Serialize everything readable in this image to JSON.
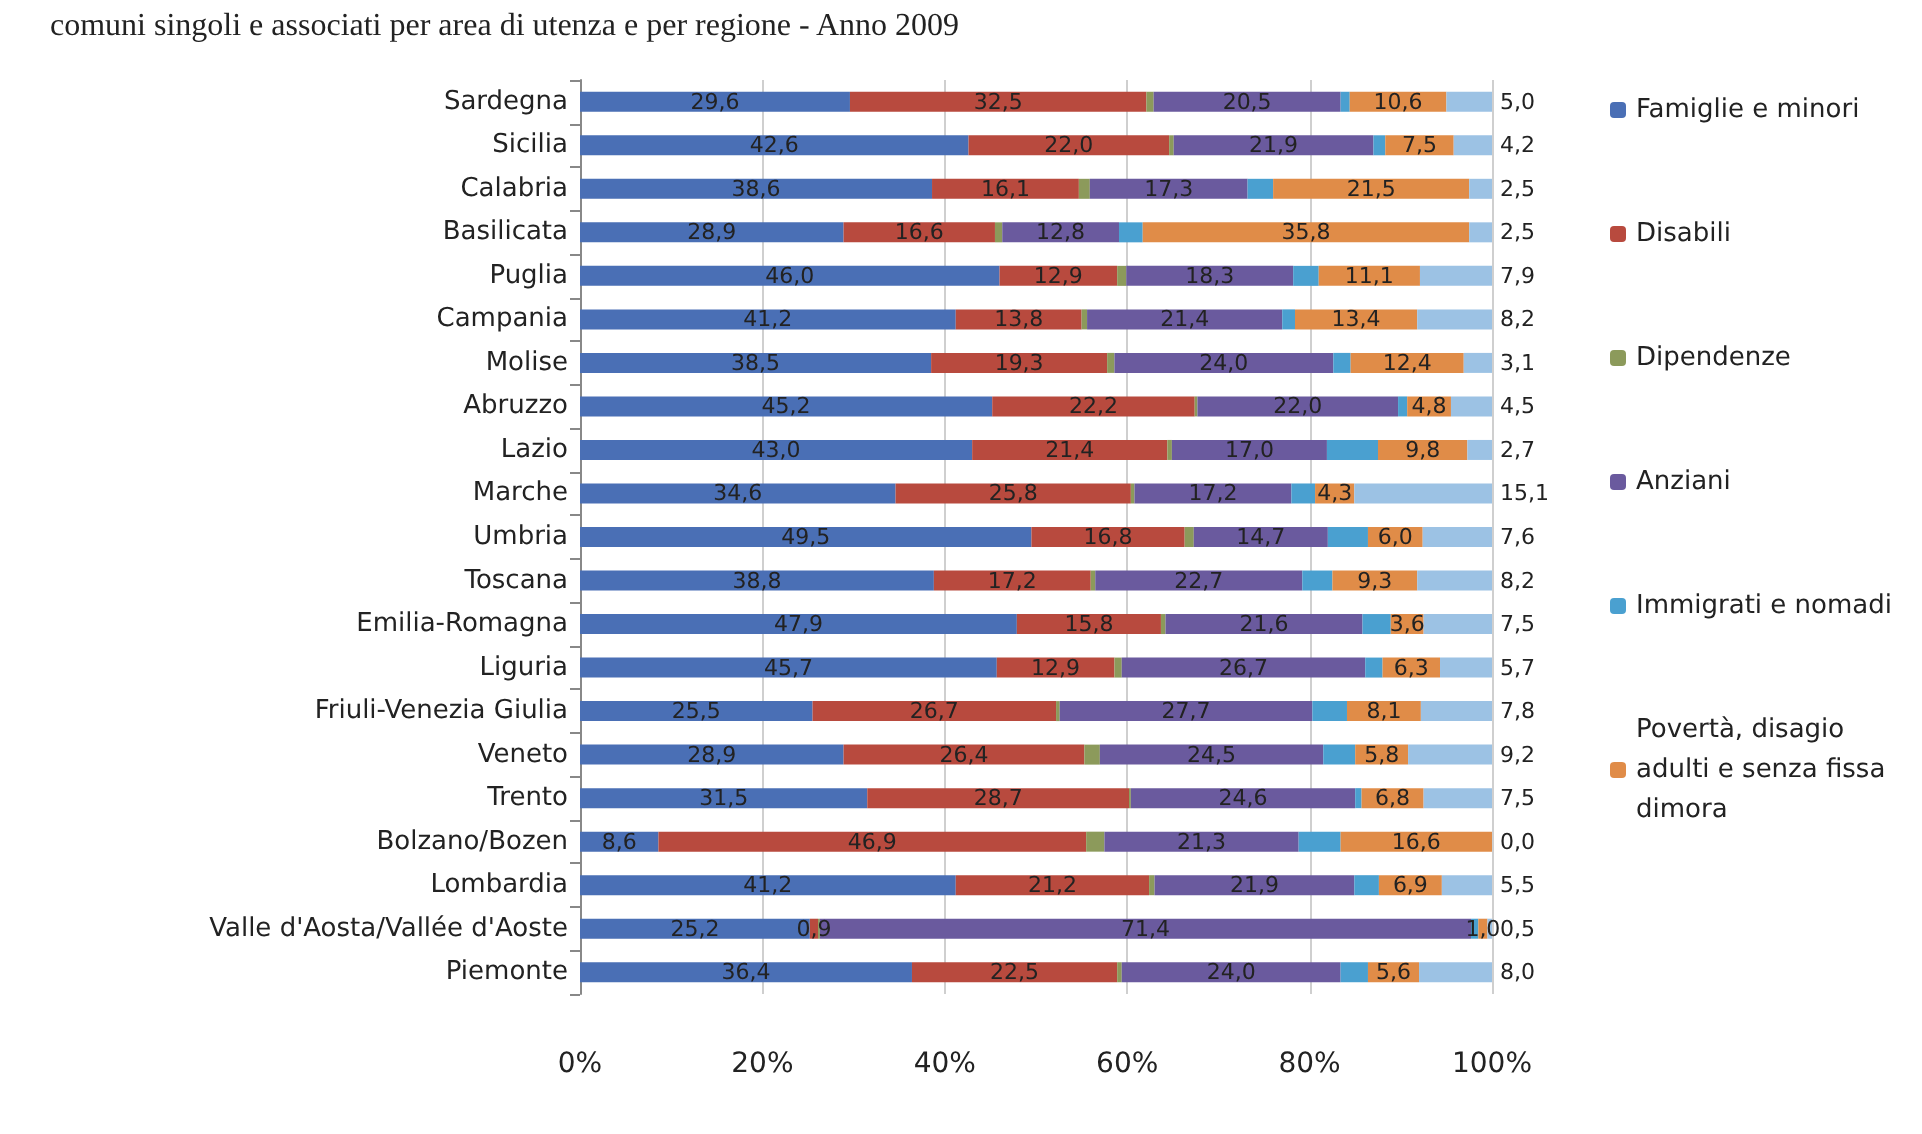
{
  "chart_data": {
    "type": "bar",
    "orientation": "horizontal",
    "stacked": true,
    "title": "comuni singoli e associati per area di utenza e per regione - Anno 2009",
    "categories": [
      "Sardegna",
      "Sicilia",
      "Calabria",
      "Basilicata",
      "Puglia",
      "Campania",
      "Molise",
      "Abruzzo",
      "Lazio",
      "Marche",
      "Umbria",
      "Toscana",
      "Emilia-Romagna",
      "Liguria",
      "Friuli-Venezia Giulia",
      "Veneto",
      "Trento",
      "Bolzano/Bozen",
      "Lombardia",
      "Valle d'Aosta/Vallée d'Aoste",
      "Piemonte"
    ],
    "xlim": [
      0,
      100
    ],
    "xticks": [
      {
        "value": 0,
        "label": "0%"
      },
      {
        "value": 20,
        "label": "20%"
      },
      {
        "value": 40,
        "label": "40%"
      },
      {
        "value": 60,
        "label": "60%"
      },
      {
        "value": 80,
        "label": "80%"
      },
      {
        "value": 100,
        "label": "100%"
      }
    ],
    "grid": "x",
    "legend": "right",
    "series": [
      {
        "name": "Famiglie e minori",
        "color": "#4a6fb5",
        "values": [
          29.6,
          42.6,
          38.6,
          28.9,
          46.0,
          41.2,
          38.5,
          45.2,
          43.0,
          34.6,
          49.5,
          38.8,
          47.9,
          45.7,
          25.5,
          28.9,
          31.5,
          8.6,
          41.2,
          25.2,
          36.4
        ],
        "value_labels": [
          "29,6",
          "42,6",
          "38,6",
          "28,9",
          "46,0",
          "41,2",
          "38,5",
          "45,2",
          "43,0",
          "34,6",
          "49,5",
          "38,8",
          "47,9",
          "45,7",
          "25,5",
          "28,9",
          "31,5",
          "8,6",
          "41,2",
          "25,2",
          "36,4"
        ]
      },
      {
        "name": "Disabili",
        "color": "#b84a3e",
        "values": [
          32.5,
          22.0,
          16.1,
          16.6,
          12.9,
          13.8,
          19.3,
          22.2,
          21.4,
          25.8,
          16.8,
          17.2,
          15.8,
          12.9,
          26.7,
          26.4,
          28.7,
          46.9,
          21.2,
          0.9,
          22.5
        ],
        "value_labels": [
          "32,5",
          "22,0",
          "16,1",
          "16,6",
          "12,9",
          "13,8",
          "19,3",
          "22,2",
          "21,4",
          "25,8",
          "16,8",
          "17,2",
          "15,8",
          "12,9",
          "26,7",
          "26,4",
          "28,7",
          "46,9",
          "21,2",
          "0,9",
          "22,5"
        ]
      },
      {
        "name": "Dipendenze",
        "color": "#8c9a5b",
        "values": [
          0.8,
          0.5,
          1.2,
          0.8,
          1.0,
          0.6,
          0.8,
          0.3,
          0.5,
          0.4,
          1.0,
          0.5,
          0.5,
          0.8,
          0.4,
          1.7,
          0.2,
          2.0,
          0.6,
          0.2,
          0.5
        ]
      },
      {
        "name": "Anziani",
        "color": "#6a5a9e",
        "values": [
          20.5,
          21.9,
          17.3,
          12.8,
          18.3,
          21.4,
          24.0,
          22.0,
          17.0,
          17.2,
          14.7,
          22.7,
          21.6,
          26.7,
          27.7,
          24.5,
          24.6,
          21.3,
          21.9,
          71.4,
          24.0
        ],
        "value_labels": [
          "20,5",
          "21,9",
          "17,3",
          "12,8",
          "18,3",
          "21,4",
          "24,0",
          "22,0",
          "17,0",
          "17,2",
          "14,7",
          "22,7",
          "21,6",
          "26,7",
          "27,7",
          "24,5",
          "24,6",
          "21,3",
          "21,9",
          "71,4",
          "24,0"
        ]
      },
      {
        "name": "Immigrati e nomadi",
        "color": "#4aa0d0",
        "values": [
          1.0,
          1.3,
          2.8,
          2.6,
          2.8,
          1.4,
          1.9,
          1.0,
          5.6,
          2.6,
          4.4,
          3.3,
          3.1,
          1.9,
          3.8,
          3.5,
          0.7,
          4.6,
          2.7,
          0.8,
          3.0
        ]
      },
      {
        "name": "Povertà, disagio adulti e senza fissa dimora",
        "color": "#e08c48",
        "values": [
          10.6,
          7.5,
          21.5,
          35.8,
          11.1,
          13.4,
          12.4,
          4.8,
          9.8,
          4.3,
          6.0,
          9.3,
          3.6,
          6.3,
          8.1,
          5.8,
          6.8,
          16.6,
          6.9,
          1.0,
          5.6
        ],
        "value_labels": [
          "10,6",
          "7,5",
          "21,5",
          "35,8",
          "11,1",
          "13,4",
          "12,4",
          "4,8",
          "9,8",
          "4,3",
          "6,0",
          "9,3",
          "3,6",
          "6,3",
          "8,1",
          "5,8",
          "6,8",
          "16,6",
          "6,9",
          "1,0",
          "5,6"
        ]
      },
      {
        "color": "#9cc2e4",
        "values": [
          5.0,
          4.2,
          2.5,
          2.5,
          7.9,
          8.2,
          3.1,
          4.5,
          2.7,
          15.1,
          7.6,
          8.2,
          7.5,
          5.7,
          7.8,
          9.2,
          7.5,
          0.0,
          5.5,
          0.5,
          8.0
        ],
        "value_labels": [
          "5,0",
          "4,2",
          "2,5",
          "2,5",
          "7,9",
          "8,2",
          "3,1",
          "4,5",
          "2,7",
          "15,1",
          "7,6",
          "8,2",
          "7,5",
          "5,7",
          "7,8",
          "9,2",
          "7,5",
          "0,0",
          "5,5",
          "0,5",
          "8,0"
        ]
      }
    ]
  }
}
